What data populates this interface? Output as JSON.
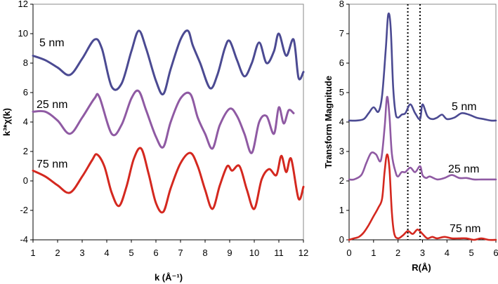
{
  "chart_data": [
    {
      "type": "line",
      "xlabel": "k (Å⁻¹)",
      "ylabel": "k³*χ(k)",
      "xlim": [
        1,
        12
      ],
      "ylim": [
        -4,
        12
      ],
      "xticks": [
        "1",
        "2",
        "3",
        "4",
        "5",
        "6",
        "7",
        "8",
        "9",
        "10",
        "11",
        "12"
      ],
      "yticks": [
        "-4",
        "-2",
        "0",
        "2",
        "4",
        "6",
        "8",
        "10",
        "12"
      ],
      "grid": false,
      "series": [
        {
          "name": "5 nm",
          "color": "#4b4a92",
          "x": [
            1.0,
            1.5,
            2.0,
            2.5,
            3.0,
            3.5,
            3.8,
            4.2,
            4.6,
            5.0,
            5.3,
            5.6,
            6.0,
            6.3,
            6.6,
            7.0,
            7.3,
            7.5,
            7.8,
            8.2,
            8.5,
            8.8,
            9.0,
            9.3,
            9.6,
            9.9,
            10.2,
            10.5,
            10.8,
            11.0,
            11.3,
            11.6,
            11.8,
            12.0
          ],
          "y": [
            8.5,
            8.2,
            7.7,
            7.2,
            8.3,
            9.6,
            9.0,
            6.4,
            6.6,
            8.8,
            10.2,
            9.0,
            6.8,
            5.9,
            7.6,
            9.6,
            10.2,
            9.2,
            8.0,
            6.3,
            7.2,
            9.0,
            9.5,
            8.2,
            7.1,
            8.0,
            9.4,
            8.0,
            8.8,
            10.0,
            8.5,
            9.6,
            7.0,
            7.4
          ]
        },
        {
          "name": "25 nm",
          "color": "#8f5aa3",
          "x": [
            1.0,
            1.5,
            2.0,
            2.5,
            3.0,
            3.5,
            3.7,
            4.2,
            4.6,
            5.0,
            5.3,
            5.6,
            6.0,
            6.3,
            6.6,
            7.0,
            7.4,
            7.7,
            8.0,
            8.3,
            8.6,
            9.0,
            9.3,
            9.6,
            9.9,
            10.2,
            10.5,
            10.8,
            11.0,
            11.2,
            11.4,
            11.6
          ],
          "y": [
            4.7,
            4.7,
            4.1,
            3.2,
            4.3,
            5.6,
            5.7,
            3.2,
            3.8,
            5.6,
            6.1,
            4.8,
            3.0,
            2.3,
            4.0,
            5.6,
            5.9,
            4.3,
            3.2,
            2.2,
            3.8,
            4.9,
            4.4,
            3.2,
            1.9,
            4.0,
            4.4,
            3.2,
            5.0,
            3.9,
            4.8,
            4.6
          ]
        },
        {
          "name": "75 nm",
          "color": "#d4281f",
          "x": [
            1.0,
            1.5,
            2.0,
            2.5,
            3.0,
            3.4,
            3.6,
            3.9,
            4.2,
            4.5,
            4.8,
            5.1,
            5.4,
            5.7,
            6.0,
            6.3,
            6.6,
            7.0,
            7.4,
            7.7,
            8.0,
            8.3,
            8.6,
            8.9,
            9.1,
            9.4,
            9.7,
            10.0,
            10.3,
            10.6,
            10.9,
            11.1,
            11.3,
            11.5,
            11.8,
            12.0
          ],
          "y": [
            0.7,
            0.3,
            -0.3,
            -0.8,
            0.3,
            1.4,
            1.8,
            1.0,
            -0.8,
            -1.7,
            -0.4,
            1.5,
            2.2,
            0.5,
            -1.5,
            -2.1,
            -0.5,
            1.2,
            1.9,
            1.0,
            -0.6,
            -1.9,
            -0.3,
            1.0,
            0.7,
            1.0,
            -0.6,
            -1.9,
            0.1,
            0.8,
            0.4,
            1.7,
            0.6,
            1.5,
            -1.2,
            -0.4
          ]
        }
      ]
    },
    {
      "type": "line",
      "xlabel": "R(Å)",
      "ylabel": "Transform Magnitude",
      "xlim": [
        0,
        6
      ],
      "ylim": [
        0,
        8
      ],
      "xticks": [
        "0",
        "1",
        "2",
        "3",
        "4",
        "5",
        "6"
      ],
      "yticks": [
        "0",
        "1",
        "2",
        "3",
        "4",
        "5",
        "6",
        "7",
        "8"
      ],
      "grid": false,
      "vlines": [
        2.4,
        2.9
      ],
      "series": [
        {
          "name": "5 nm",
          "color": "#4b4a92",
          "x": [
            0.0,
            0.3,
            0.6,
            0.8,
            1.0,
            1.2,
            1.35,
            1.5,
            1.6,
            1.7,
            1.8,
            1.9,
            2.0,
            2.15,
            2.3,
            2.5,
            2.7,
            2.9,
            3.0,
            3.2,
            3.4,
            3.6,
            3.8,
            4.0,
            4.3,
            4.6,
            4.9,
            5.2,
            5.5,
            5.8,
            6.0
          ],
          "y": [
            4.05,
            4.05,
            4.1,
            4.3,
            4.5,
            4.35,
            4.9,
            6.5,
            7.65,
            7.2,
            5.2,
            4.3,
            4.15,
            4.25,
            4.3,
            4.6,
            4.3,
            4.1,
            4.6,
            4.2,
            4.1,
            4.15,
            4.25,
            4.1,
            4.15,
            4.3,
            4.25,
            4.15,
            4.1,
            4.05,
            4.05
          ]
        },
        {
          "name": "25 nm",
          "color": "#8f5aa3",
          "x": [
            0.0,
            0.2,
            0.5,
            0.7,
            0.9,
            1.1,
            1.3,
            1.45,
            1.55,
            1.65,
            1.75,
            1.9,
            2.0,
            2.15,
            2.3,
            2.5,
            2.7,
            2.9,
            3.0,
            3.15,
            3.3,
            3.6,
            3.9,
            4.2,
            4.5,
            4.8,
            5.1,
            5.4,
            5.7,
            6.0
          ],
          "y": [
            2.05,
            2.05,
            2.2,
            2.6,
            2.95,
            2.9,
            2.7,
            3.8,
            4.85,
            4.2,
            2.9,
            2.3,
            2.15,
            2.3,
            2.3,
            2.45,
            2.3,
            2.5,
            2.2,
            2.1,
            2.15,
            2.05,
            2.1,
            2.2,
            2.1,
            2.1,
            2.05,
            2.05,
            2.05,
            2.05
          ]
        },
        {
          "name": "75 nm",
          "color": "#d4281f",
          "x": [
            0.0,
            0.2,
            0.4,
            0.6,
            0.8,
            1.0,
            1.2,
            1.35,
            1.45,
            1.55,
            1.65,
            1.75,
            1.85,
            2.0,
            2.2,
            2.4,
            2.6,
            2.8,
            3.0,
            3.2,
            3.4,
            3.6,
            3.9,
            4.2,
            4.5,
            4.8,
            5.1,
            5.4,
            5.7,
            6.0
          ],
          "y": [
            0.0,
            0.05,
            0.1,
            0.25,
            0.5,
            0.8,
            1.1,
            1.4,
            2.3,
            2.9,
            2.4,
            0.9,
            0.2,
            0.05,
            0.15,
            0.3,
            0.2,
            0.35,
            0.2,
            0.05,
            0.1,
            0.05,
            0.1,
            0.05,
            0.05,
            0.05,
            0.0,
            0.05,
            0.0,
            0.0
          ]
        }
      ]
    }
  ]
}
